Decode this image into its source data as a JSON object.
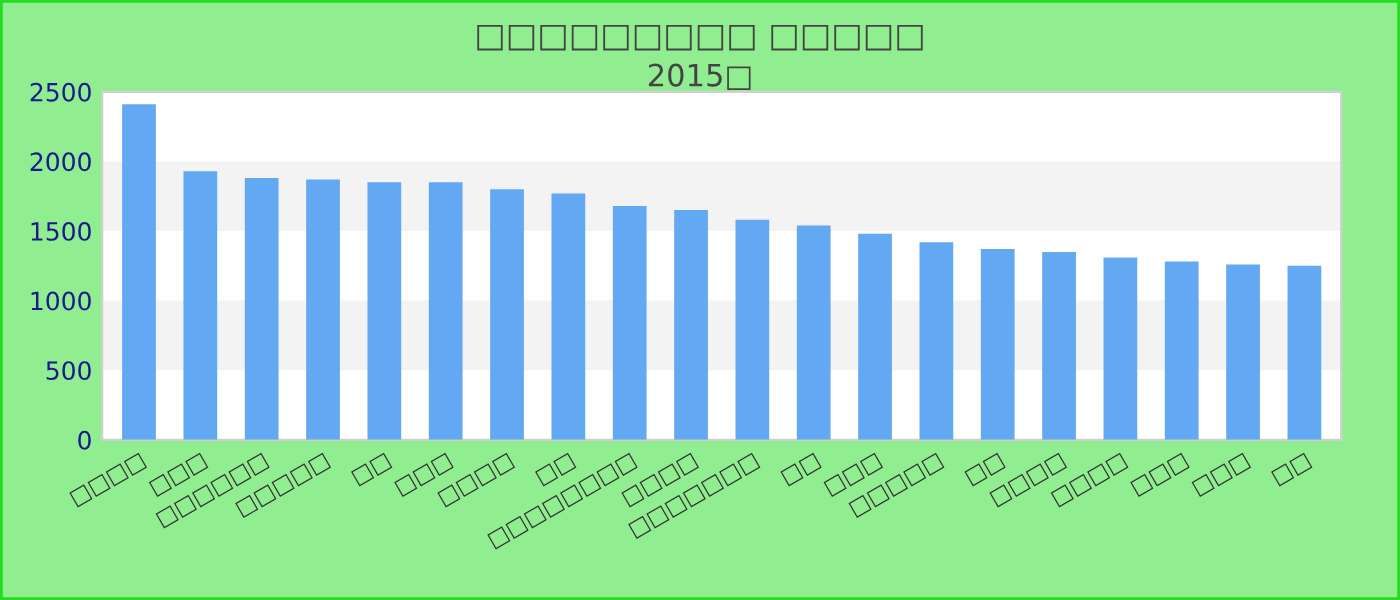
{
  "chart_data": {
    "type": "bar",
    "title": "□□□□□□□□□ □□□□□",
    "subtitle": "2015□",
    "categories": [
      "□□□□",
      "□□□",
      "□□□□□□",
      "□□□□□",
      "□□",
      "□□□",
      "□□□□",
      "□□",
      "□□□□□□□□",
      "□□□□",
      "□□□□□□□",
      "□□",
      "□□□",
      "□□□□□",
      "□□",
      "□□□□",
      "□□□□",
      "□□□",
      "□□□",
      "□□"
    ],
    "values": [
      2410,
      1930,
      1880,
      1870,
      1850,
      1850,
      1800,
      1770,
      1680,
      1650,
      1580,
      1540,
      1480,
      1420,
      1370,
      1350,
      1310,
      1280,
      1260,
      1250
    ],
    "color": "#62a8f3",
    "ylim": [
      0,
      2500
    ],
    "yticks": [
      0,
      500,
      1000,
      1500,
      2000,
      2500
    ],
    "bands": [
      {
        "axis": "y",
        "from": 500,
        "to": 1000,
        "color": "#f3f3f3"
      },
      {
        "axis": "y",
        "from": 1500,
        "to": 2000,
        "color": "#f3f3f3"
      }
    ]
  }
}
